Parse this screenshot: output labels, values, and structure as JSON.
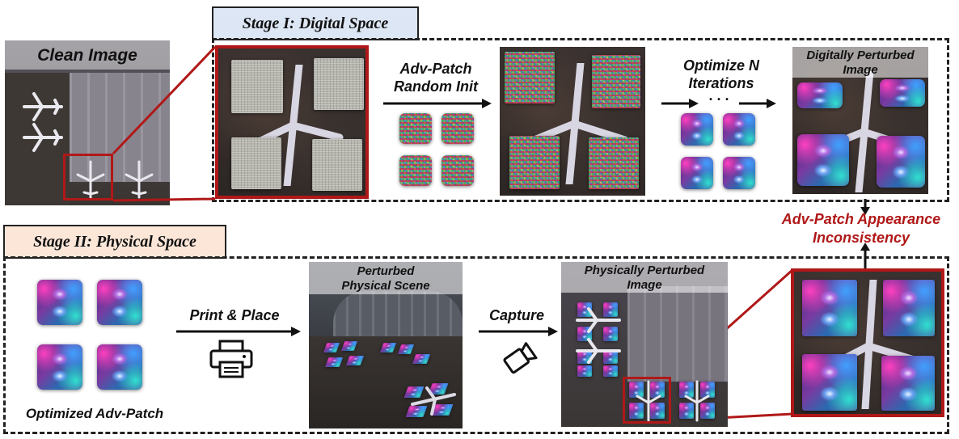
{
  "stage1": {
    "label": "Stage I: Digital Space"
  },
  "stage2": {
    "label": "Stage II: Physical Space"
  },
  "clean_image": {
    "label": "Clean Image"
  },
  "steps": {
    "random_init_line1": "Adv-Patch",
    "random_init_line2": "Random Init",
    "optimize_line1": "Optimize N",
    "optimize_line2": "Iterations",
    "optimize_dots": ". . .",
    "digital_line1": "Digitally Perturbed",
    "digital_line2": "Image",
    "inconsistency_line1": "Adv-Patch Appearance",
    "inconsistency_line2": "Inconsistency",
    "optimized_patch": "Optimized Adv-Patch",
    "print_place": "Print & Place",
    "scene_line1": "Perturbed",
    "scene_line2": "Physical Scene",
    "capture": "Capture",
    "physical_line1": "Physically Perturbed",
    "physical_line2": "Image"
  },
  "icons": {
    "printer": "printer-icon",
    "camera": "camera-icon"
  },
  "colors": {
    "highlight": "#b01818",
    "stage1_bg": "#dde6f4",
    "stage2_bg": "#fbe6d8",
    "inconsistency_text": "#b01818"
  }
}
